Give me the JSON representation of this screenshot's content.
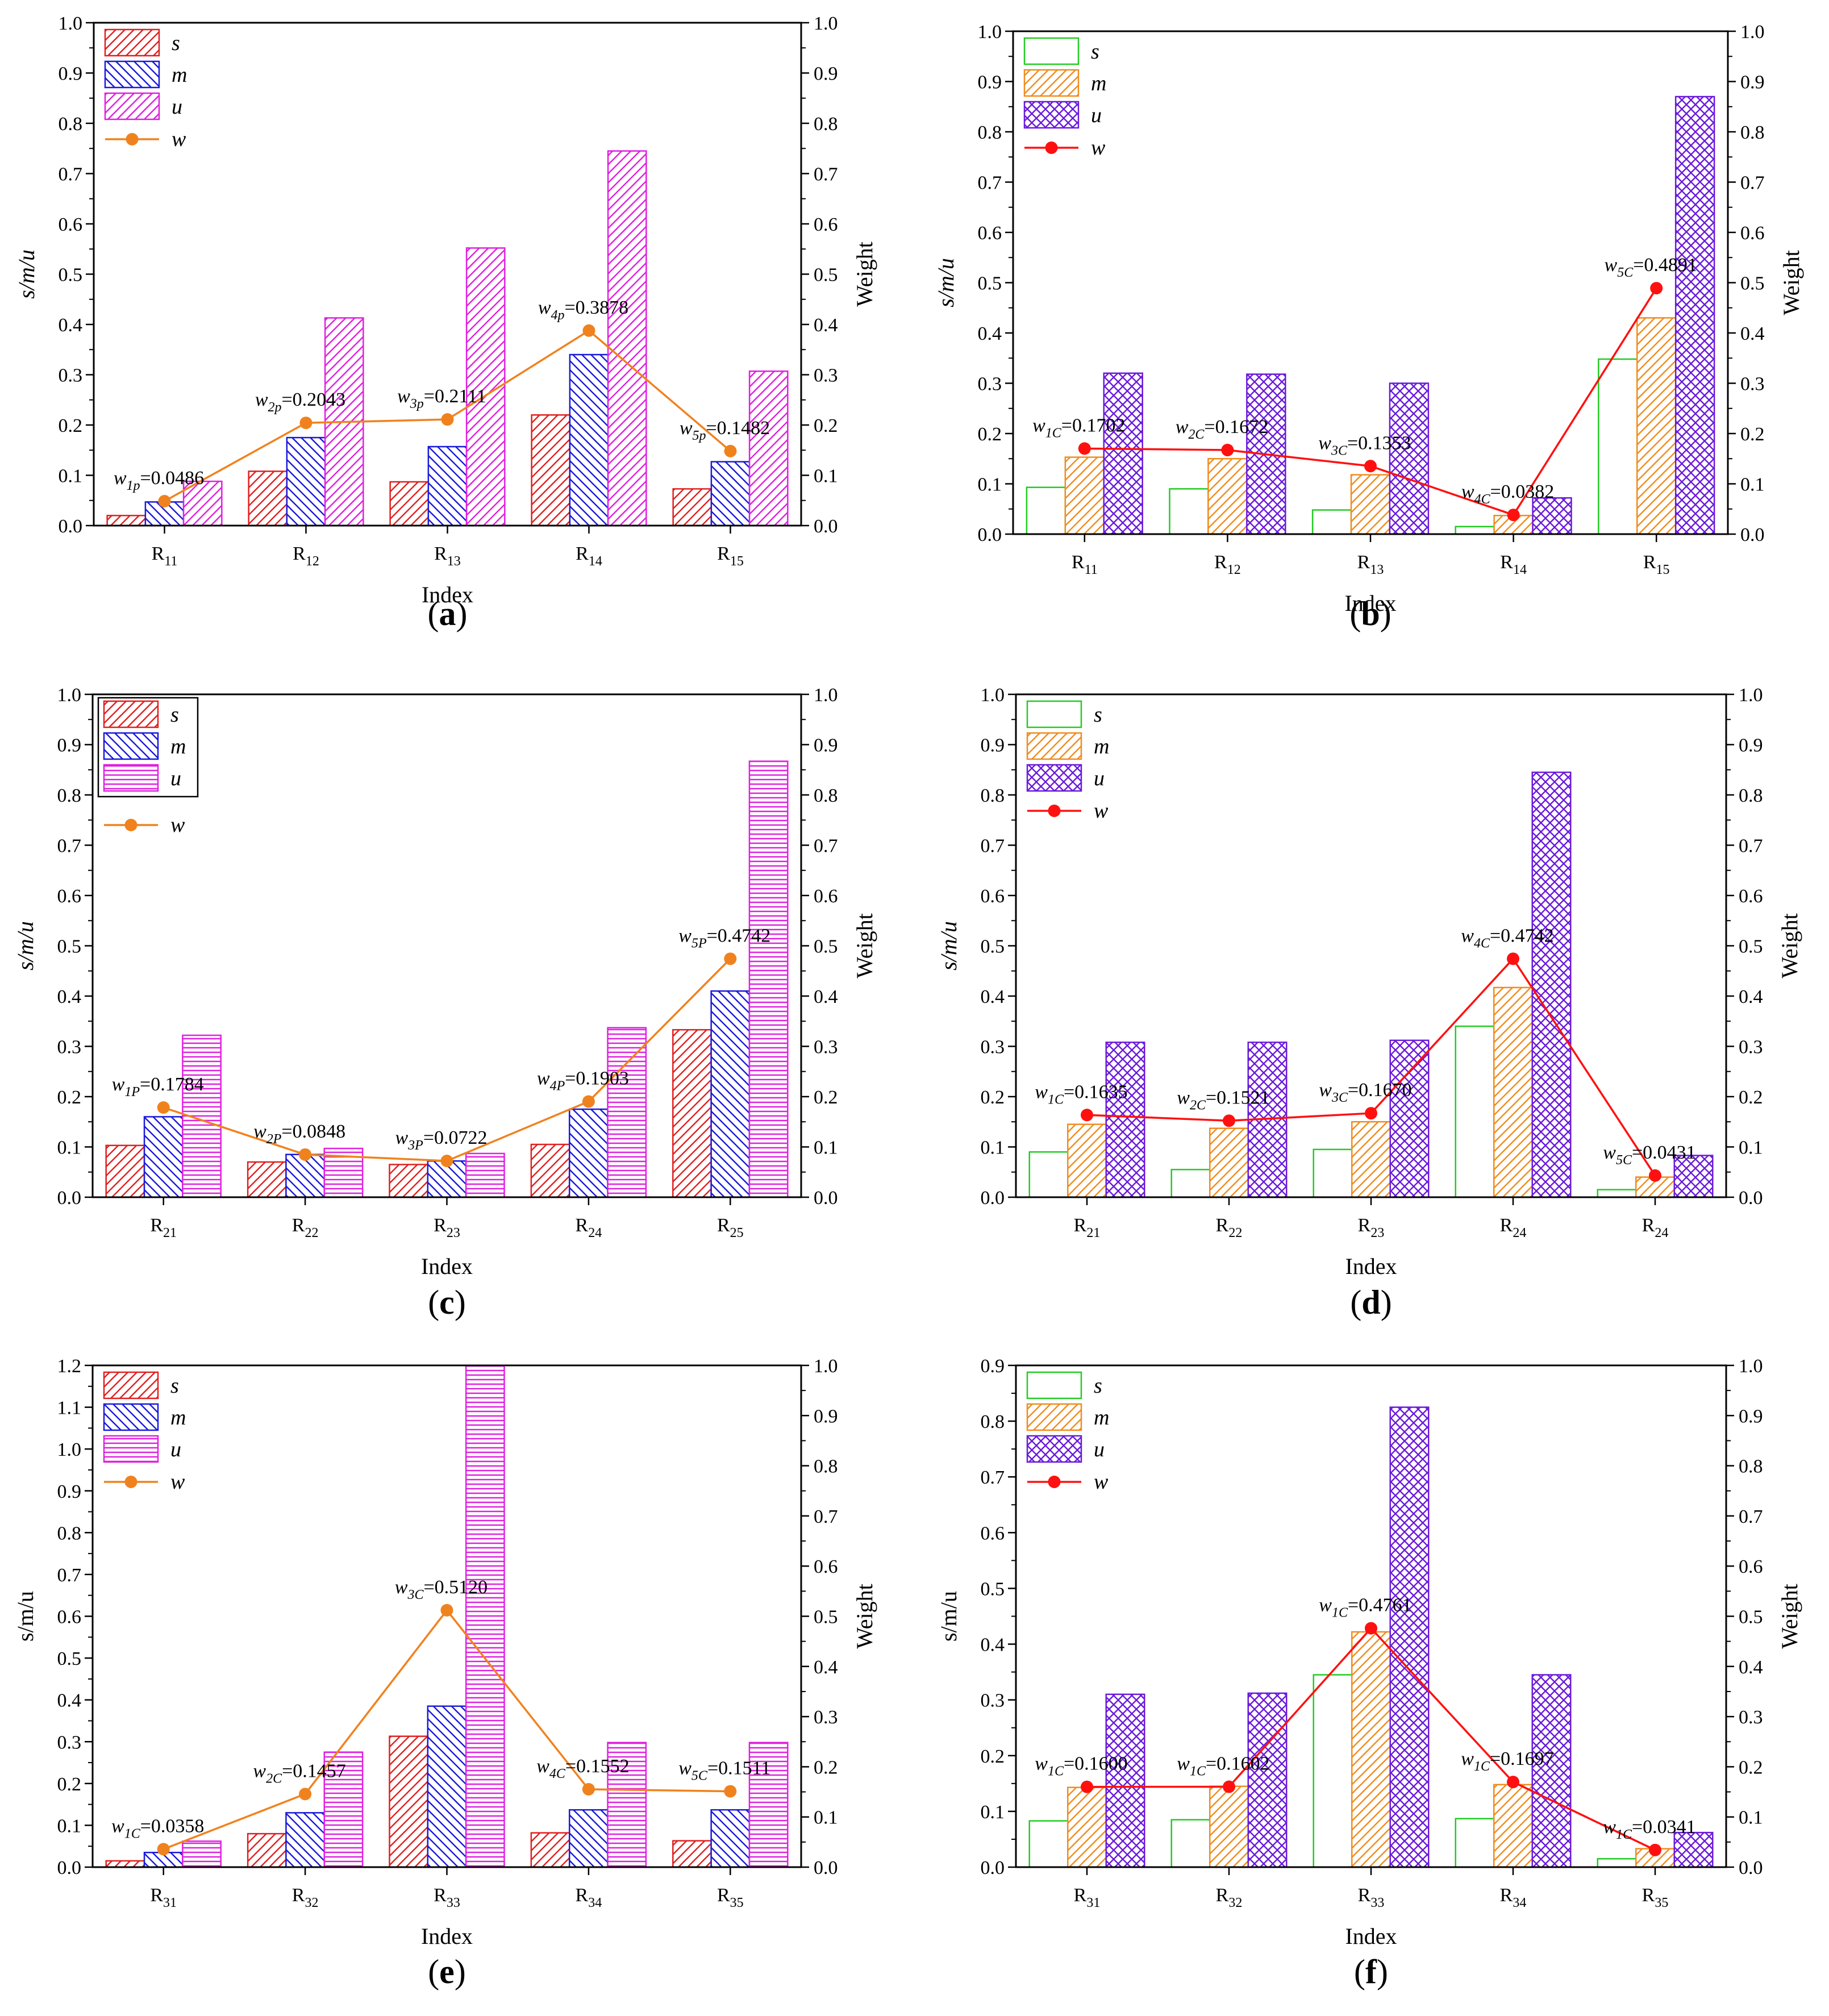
{
  "chart_data": [
    {
      "type": "bar",
      "panel_label": "(a)",
      "label_letter": "a",
      "title": "",
      "categories": [
        "R11",
        "R12",
        "R13",
        "R14",
        "R15"
      ],
      "category_base": [
        "R",
        "R",
        "R",
        "R",
        "R"
      ],
      "category_sub": [
        "11",
        "12",
        "13",
        "14",
        "15"
      ],
      "xlabel": "Index",
      "ylabel_left": "s/m/u",
      "ylabel_left_italic": true,
      "ylabel_right": "Weight",
      "ylim_left": [
        0,
        1.0
      ],
      "yticks_left": [
        "0.0",
        "0.1",
        "0.2",
        "0.3",
        "0.4",
        "0.5",
        "0.6",
        "0.7",
        "0.8",
        "0.9",
        "1.0"
      ],
      "ylim_right": [
        0,
        1.0
      ],
      "yticks_right": [
        "0.0",
        "0.1",
        "0.2",
        "0.3",
        "0.4",
        "0.5",
        "0.6",
        "0.7",
        "0.8",
        "0.9",
        "1.0"
      ],
      "legend_framed": false,
      "series": [
        {
          "name": "s",
          "values": [
            0.02,
            0.108,
            0.087,
            0.22,
            0.073
          ],
          "color": "#e02020",
          "pattern": "diag-up"
        },
        {
          "name": "m",
          "values": [
            0.047,
            0.175,
            0.157,
            0.34,
            0.127
          ],
          "color": "#1a1adb",
          "pattern": "diag-down"
        },
        {
          "name": "u",
          "values": [
            0.088,
            0.413,
            0.552,
            0.745,
            0.307
          ],
          "color": "#e020e0",
          "pattern": "diag-up"
        }
      ],
      "line": {
        "name": "w",
        "values": [
          0.0486,
          0.2043,
          0.2111,
          0.3878,
          0.1482
        ],
        "color": "#f0821e"
      },
      "annotations": [
        {
          "w": "w",
          "sub": "1p",
          "value": "=0.0486"
        },
        {
          "w": "w",
          "sub": "2p",
          "value": "=0.2043"
        },
        {
          "w": "w",
          "sub": "3p",
          "value": "=0.2111"
        },
        {
          "w": "w",
          "sub": "4p",
          "value": "=0.3878"
        },
        {
          "w": "w",
          "sub": "5p",
          "value": "=0.1482"
        }
      ]
    },
    {
      "type": "bar",
      "panel_label": "(b)",
      "label_letter": "b",
      "title": "",
      "categories": [
        "R11",
        "R12",
        "R13",
        "R14",
        "R15"
      ],
      "category_base": [
        "R",
        "R",
        "R",
        "R",
        "R"
      ],
      "category_sub": [
        "11",
        "12",
        "13",
        "14",
        "15"
      ],
      "xlabel": "Index",
      "ylabel_left": "s/m/u",
      "ylabel_left_italic": true,
      "ylabel_right": "Weight",
      "ylim_left": [
        0,
        1.0
      ],
      "yticks_left": [
        "0.0",
        "0.1",
        "0.2",
        "0.3",
        "0.4",
        "0.5",
        "0.6",
        "0.7",
        "0.8",
        "0.9",
        "1.0"
      ],
      "ylim_right": [
        0,
        1.0
      ],
      "yticks_right": [
        "0.0",
        "0.1",
        "0.2",
        "0.3",
        "0.4",
        "0.5",
        "0.6",
        "0.7",
        "0.8",
        "0.9",
        "1.0"
      ],
      "legend_framed": false,
      "series": [
        {
          "name": "s",
          "values": [
            0.093,
            0.09,
            0.048,
            0.015,
            0.348
          ],
          "color": "#22cc22",
          "pattern": "none"
        },
        {
          "name": "m",
          "values": [
            0.153,
            0.15,
            0.118,
            0.037,
            0.43
          ],
          "color": "#f08c1e",
          "pattern": "diag-up"
        },
        {
          "name": "u",
          "values": [
            0.32,
            0.318,
            0.3,
            0.072,
            0.87
          ],
          "color": "#6a1adb",
          "pattern": "cross"
        }
      ],
      "line": {
        "name": "w",
        "values": [
          0.1702,
          0.1672,
          0.1353,
          0.0382,
          0.4891
        ],
        "color": "#ff1010"
      },
      "annotations": [
        {
          "w": "w",
          "sub": "1C",
          "value": "=0.1702"
        },
        {
          "w": "w",
          "sub": "2C",
          "value": "=0.1672"
        },
        {
          "w": "w",
          "sub": "3C",
          "value": "=0.1353"
        },
        {
          "w": "w",
          "sub": "4C",
          "value": "=0.0382"
        },
        {
          "w": "w",
          "sub": "5C",
          "value": "=0.4891"
        }
      ]
    },
    {
      "type": "bar",
      "panel_label": "(c)",
      "label_letter": "c",
      "title": "",
      "categories": [
        "R21",
        "R22",
        "R23",
        "R24",
        "R25"
      ],
      "category_base": [
        "R",
        "R",
        "R",
        "R",
        "R"
      ],
      "category_sub": [
        "21",
        "22",
        "23",
        "24",
        "25"
      ],
      "xlabel": "Index",
      "ylabel_left": "s/m/u",
      "ylabel_left_italic": true,
      "ylabel_right": "Weight",
      "ylim_left": [
        0,
        1.0
      ],
      "yticks_left": [
        "0.0",
        "0.1",
        "0.2",
        "0.3",
        "0.4",
        "0.5",
        "0.6",
        "0.7",
        "0.8",
        "0.9",
        "1.0"
      ],
      "ylim_right": [
        0,
        1.0
      ],
      "yticks_right": [
        "0.0",
        "0.1",
        "0.2",
        "0.3",
        "0.4",
        "0.5",
        "0.6",
        "0.7",
        "0.8",
        "0.9",
        "1.0"
      ],
      "legend_framed": true,
      "series": [
        {
          "name": "s",
          "values": [
            0.103,
            0.07,
            0.065,
            0.105,
            0.333
          ],
          "color": "#e02020",
          "pattern": "diag-up"
        },
        {
          "name": "m",
          "values": [
            0.16,
            0.085,
            0.072,
            0.175,
            0.41
          ],
          "color": "#1a1adb",
          "pattern": "diag-down"
        },
        {
          "name": "u",
          "values": [
            0.322,
            0.097,
            0.087,
            0.337,
            0.867
          ],
          "color": "#e020e0",
          "pattern": "horiz"
        }
      ],
      "line": {
        "name": "w",
        "values": [
          0.1784,
          0.0848,
          0.0722,
          0.1903,
          0.4742
        ],
        "color": "#f0821e"
      },
      "annotations": [
        {
          "w": "w",
          "sub": "1P",
          "value": "=0.1784"
        },
        {
          "w": "w",
          "sub": "2P",
          "value": "=0.0848"
        },
        {
          "w": "w",
          "sub": "3P",
          "value": "=0.0722"
        },
        {
          "w": "w",
          "sub": "4P",
          "value": "=0.1903"
        },
        {
          "w": "w",
          "sub": "5P",
          "value": "=0.4742"
        }
      ]
    },
    {
      "type": "bar",
      "panel_label": "(d)",
      "label_letter": "d",
      "title": "",
      "categories": [
        "R21",
        "R22",
        "R23",
        "R24",
        "R24"
      ],
      "category_base": [
        "R",
        "R",
        "R",
        "R",
        "R"
      ],
      "category_sub": [
        "21",
        "22",
        "23",
        "24",
        "24"
      ],
      "xlabel": "Index",
      "ylabel_left": "s/m/u",
      "ylabel_left_italic": true,
      "ylabel_right": "Weight",
      "ylim_left": [
        0,
        1.0
      ],
      "yticks_left": [
        "0.0",
        "0.1",
        "0.2",
        "0.3",
        "0.4",
        "0.5",
        "0.6",
        "0.7",
        "0.8",
        "0.9",
        "1.0"
      ],
      "ylim_right": [
        0,
        1.0
      ],
      "yticks_right": [
        "0.0",
        "0.1",
        "0.2",
        "0.3",
        "0.4",
        "0.5",
        "0.6",
        "0.7",
        "0.8",
        "0.9",
        "1.0"
      ],
      "legend_framed": false,
      "series": [
        {
          "name": "s",
          "values": [
            0.09,
            0.055,
            0.095,
            0.34,
            0.015
          ],
          "color": "#22cc22",
          "pattern": "none"
        },
        {
          "name": "m",
          "values": [
            0.145,
            0.137,
            0.15,
            0.417,
            0.04
          ],
          "color": "#f08c1e",
          "pattern": "diag-up"
        },
        {
          "name": "u",
          "values": [
            0.308,
            0.308,
            0.312,
            0.845,
            0.083
          ],
          "color": "#6a1adb",
          "pattern": "cross"
        }
      ],
      "line": {
        "name": "w",
        "values": [
          0.1635,
          0.1521,
          0.167,
          0.4742,
          0.0431
        ],
        "color": "#ff1010"
      },
      "annotations": [
        {
          "w": "w",
          "sub": "1C",
          "value": "=0.1635"
        },
        {
          "w": "w",
          "sub": "2C",
          "value": "=0.1521"
        },
        {
          "w": "w",
          "sub": "3C",
          "value": "=0.1670"
        },
        {
          "w": "w",
          "sub": "4C",
          "value": "=0.4742"
        },
        {
          "w": "w",
          "sub": "5C",
          "value": "=0.0431"
        }
      ]
    },
    {
      "type": "bar",
      "panel_label": "(e)",
      "label_letter": "e",
      "title": "",
      "categories": [
        "R31",
        "R32",
        "R33",
        "R34",
        "R35"
      ],
      "category_base": [
        "R",
        "R",
        "R",
        "R",
        "R"
      ],
      "category_sub": [
        "31",
        "32",
        "33",
        "34",
        "35"
      ],
      "xlabel": "Index",
      "ylabel_left": "s/m/u",
      "ylabel_left_italic": false,
      "ylabel_right": "Weight",
      "ylim_left": [
        0,
        1.2
      ],
      "yticks_left": [
        "0.0",
        "0.1",
        "0.2",
        "0.3",
        "0.4",
        "0.5",
        "0.6",
        "0.7",
        "0.8",
        "0.9",
        "1.0",
        "1.1",
        "1.2"
      ],
      "ylim_right": [
        0,
        1.0
      ],
      "yticks_right": [
        "0.0",
        "0.1",
        "0.2",
        "0.3",
        "0.4",
        "0.5",
        "0.6",
        "0.7",
        "0.8",
        "0.9",
        "1.0"
      ],
      "legend_framed": false,
      "series": [
        {
          "name": "s",
          "values": [
            0.015,
            0.08,
            0.313,
            0.082,
            0.063
          ],
          "color": "#e02020",
          "pattern": "diag-up"
        },
        {
          "name": "m",
          "values": [
            0.035,
            0.13,
            0.385,
            0.137,
            0.137
          ],
          "color": "#1a1adb",
          "pattern": "diag-down"
        },
        {
          "name": "u",
          "values": [
            0.062,
            0.275,
            1.2,
            0.298,
            0.298
          ],
          "color": "#e020e0",
          "pattern": "horiz"
        }
      ],
      "line": {
        "name": "w",
        "values": [
          0.0358,
          0.1457,
          0.512,
          0.1552,
          0.1511
        ],
        "color": "#f0821e"
      },
      "annotations": [
        {
          "w": "w",
          "sub": "1C",
          "value": "=0.0358"
        },
        {
          "w": "w",
          "sub": "2C",
          "value": "=0.1457"
        },
        {
          "w": "w",
          "sub": "3C",
          "value": "=0.5120"
        },
        {
          "w": "w",
          "sub": "4C",
          "value": "=0.1552"
        },
        {
          "w": "w",
          "sub": "5C",
          "value": "=0.1511"
        }
      ]
    },
    {
      "type": "bar",
      "panel_label": "(f)",
      "label_letter": "f",
      "title": "",
      "categories": [
        "R31",
        "R32",
        "R33",
        "R34",
        "R35"
      ],
      "category_base": [
        "R",
        "R",
        "R",
        "R",
        "R"
      ],
      "category_sub": [
        "31",
        "32",
        "33",
        "34",
        "35"
      ],
      "xlabel": "Index",
      "ylabel_left": "s/m/u",
      "ylabel_left_italic": false,
      "ylabel_right": "Weight",
      "ylim_left": [
        0,
        0.9
      ],
      "yticks_left": [
        "0.0",
        "0.1",
        "0.2",
        "0.3",
        "0.4",
        "0.5",
        "0.6",
        "0.7",
        "0.8",
        "0.9"
      ],
      "ylim_right": [
        0,
        1.0
      ],
      "yticks_right": [
        "0.0",
        "0.1",
        "0.2",
        "0.3",
        "0.4",
        "0.5",
        "0.6",
        "0.7",
        "0.8",
        "0.9",
        "1.0"
      ],
      "legend_framed": false,
      "series": [
        {
          "name": "s",
          "values": [
            0.083,
            0.085,
            0.345,
            0.087,
            0.015
          ],
          "color": "#22cc22",
          "pattern": "none"
        },
        {
          "name": "m",
          "values": [
            0.143,
            0.145,
            0.422,
            0.148,
            0.033
          ],
          "color": "#f08c1e",
          "pattern": "diag-up"
        },
        {
          "name": "u",
          "values": [
            0.31,
            0.312,
            0.825,
            0.345,
            0.062
          ],
          "color": "#6a1adb",
          "pattern": "cross"
        }
      ],
      "line": {
        "name": "w",
        "values": [
          0.16,
          0.1602,
          0.4761,
          0.1697,
          0.0341
        ],
        "color": "#ff1010"
      },
      "annotations": [
        {
          "w": "w",
          "sub": "1C",
          "value": "=0.1600"
        },
        {
          "w": "w",
          "sub": "1C",
          "value": "=0.1602"
        },
        {
          "w": "w",
          "sub": "1C",
          "value": "=0.4761"
        },
        {
          "w": "w",
          "sub": "1C",
          "value": "=0.1697"
        },
        {
          "w": "w",
          "sub": "1C",
          "value": "=0.0341"
        }
      ]
    }
  ]
}
